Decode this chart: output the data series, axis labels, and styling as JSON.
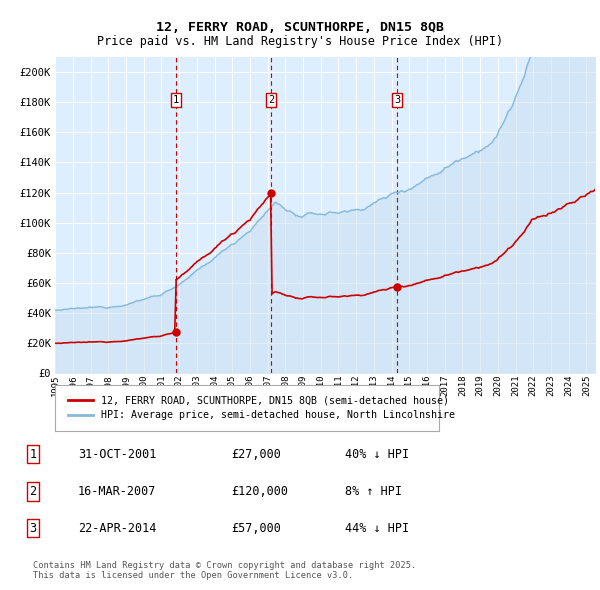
{
  "title_line1": "12, FERRY ROAD, SCUNTHORPE, DN15 8QB",
  "title_line2": "Price paid vs. HM Land Registry's House Price Index (HPI)",
  "xlim_start": 1995.0,
  "xlim_end": 2025.5,
  "ylim_min": 0,
  "ylim_max": 210000,
  "yticks": [
    0,
    20000,
    40000,
    60000,
    80000,
    100000,
    120000,
    140000,
    160000,
    180000,
    200000
  ],
  "ytick_labels": [
    "£0",
    "£20K",
    "£40K",
    "£60K",
    "£80K",
    "£100K",
    "£120K",
    "£140K",
    "£160K",
    "£180K",
    "£200K"
  ],
  "xtick_years": [
    1995,
    1996,
    1997,
    1998,
    1999,
    2000,
    2001,
    2002,
    2003,
    2004,
    2005,
    2006,
    2007,
    2008,
    2009,
    2010,
    2011,
    2012,
    2013,
    2014,
    2015,
    2016,
    2017,
    2018,
    2019,
    2020,
    2021,
    2022,
    2023,
    2024,
    2025
  ],
  "hpi_color": "#85b8d9",
  "hpi_fill_color": "#c8dff0",
  "price_color": "#cc0000",
  "vline_color": "#cc0000",
  "background_color": "#ddeeff",
  "grid_color": "#ffffff",
  "sale1_x": 2001.83,
  "sale1_y": 27000,
  "sale2_x": 2007.21,
  "sale2_y": 120000,
  "sale3_x": 2014.31,
  "sale3_y": 57000,
  "legend_label_price": "12, FERRY ROAD, SCUNTHORPE, DN15 8QB (semi-detached house)",
  "legend_label_hpi": "HPI: Average price, semi-detached house, North Lincolnshire",
  "table_data": [
    {
      "num": "1",
      "date": "31-OCT-2001",
      "price": "£27,000",
      "change": "40% ↓ HPI"
    },
    {
      "num": "2",
      "date": "16-MAR-2007",
      "price": "£120,000",
      "change": "8% ↑ HPI"
    },
    {
      "num": "3",
      "date": "22-APR-2014",
      "price": "£57,000",
      "change": "44% ↓ HPI"
    }
  ],
  "footer_text": "Contains HM Land Registry data © Crown copyright and database right 2025.\nThis data is licensed under the Open Government Licence v3.0."
}
